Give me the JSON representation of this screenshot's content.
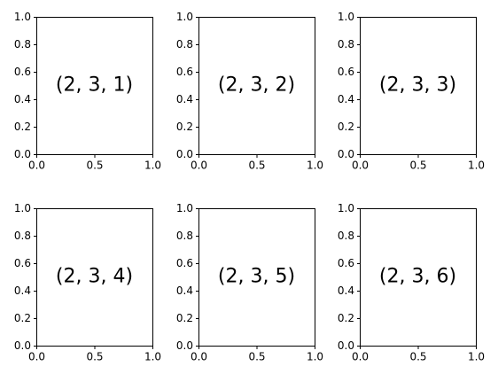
{
  "chart_data": [
    {
      "type": "empty",
      "annotation": "(2, 3, 1)",
      "xlim": [
        0,
        1
      ],
      "ylim": [
        0,
        1
      ],
      "xticks": [
        {
          "value": 0,
          "label": "0.0"
        },
        0.5,
        {
          "value": 1,
          "label": "1.0"
        }
      ],
      "yticks": [
        {
          "value": 0,
          "label": "0.0"
        },
        0.2,
        0.4,
        0.6,
        0.8,
        {
          "value": 1,
          "label": "1.0"
        }
      ]
    },
    {
      "type": "empty",
      "annotation": "(2, 3, 2)",
      "xlim": [
        0,
        1
      ],
      "ylim": [
        0,
        1
      ],
      "xticks": [
        {
          "value": 0,
          "label": "0.0"
        },
        0.5,
        {
          "value": 1,
          "label": "1.0"
        }
      ],
      "yticks": [
        {
          "value": 0,
          "label": "0.0"
        },
        0.2,
        0.4,
        0.6,
        0.8,
        {
          "value": 1,
          "label": "1.0"
        }
      ]
    },
    {
      "type": "empty",
      "annotation": "(2, 3, 3)",
      "xlim": [
        0,
        1
      ],
      "ylim": [
        0,
        1
      ],
      "xticks": [
        {
          "value": 0,
          "label": "0.0"
        },
        0.5,
        {
          "value": 1,
          "label": "1.0"
        }
      ],
      "yticks": [
        {
          "value": 0,
          "label": "0.0"
        },
        0.2,
        0.4,
        0.6,
        0.8,
        {
          "value": 1,
          "label": "1.0"
        }
      ]
    },
    {
      "type": "empty",
      "annotation": "(2, 3, 4)",
      "xlim": [
        0,
        1
      ],
      "ylim": [
        0,
        1
      ],
      "xticks": [
        {
          "value": 0,
          "label": "0.0"
        },
        0.5,
        {
          "value": 1,
          "label": "1.0"
        }
      ],
      "yticks": [
        {
          "value": 0,
          "label": "0.0"
        },
        0.2,
        0.4,
        0.6,
        0.8,
        {
          "value": 1,
          "label": "1.0"
        }
      ]
    },
    {
      "type": "empty",
      "annotation": "(2, 3, 5)",
      "xlim": [
        0,
        1
      ],
      "ylim": [
        0,
        1
      ],
      "xticks": [
        {
          "value": 0,
          "label": "0.0"
        },
        0.5,
        {
          "value": 1,
          "label": "1.0"
        }
      ],
      "yticks": [
        {
          "value": 0,
          "label": "0.0"
        },
        0.2,
        0.4,
        0.6,
        0.8,
        {
          "value": 1,
          "label": "1.0"
        }
      ]
    },
    {
      "type": "empty",
      "annotation": "(2, 3, 6)",
      "xlim": [
        0,
        1
      ],
      "ylim": [
        0,
        1
      ],
      "xticks": [
        {
          "value": 0,
          "label": "0.0"
        },
        0.5,
        {
          "value": 1,
          "label": "1.0"
        }
      ],
      "yticks": [
        {
          "value": 0,
          "label": "0.0"
        },
        0.2,
        0.4,
        0.6,
        0.8,
        {
          "value": 1,
          "label": "1.0"
        }
      ]
    }
  ]
}
